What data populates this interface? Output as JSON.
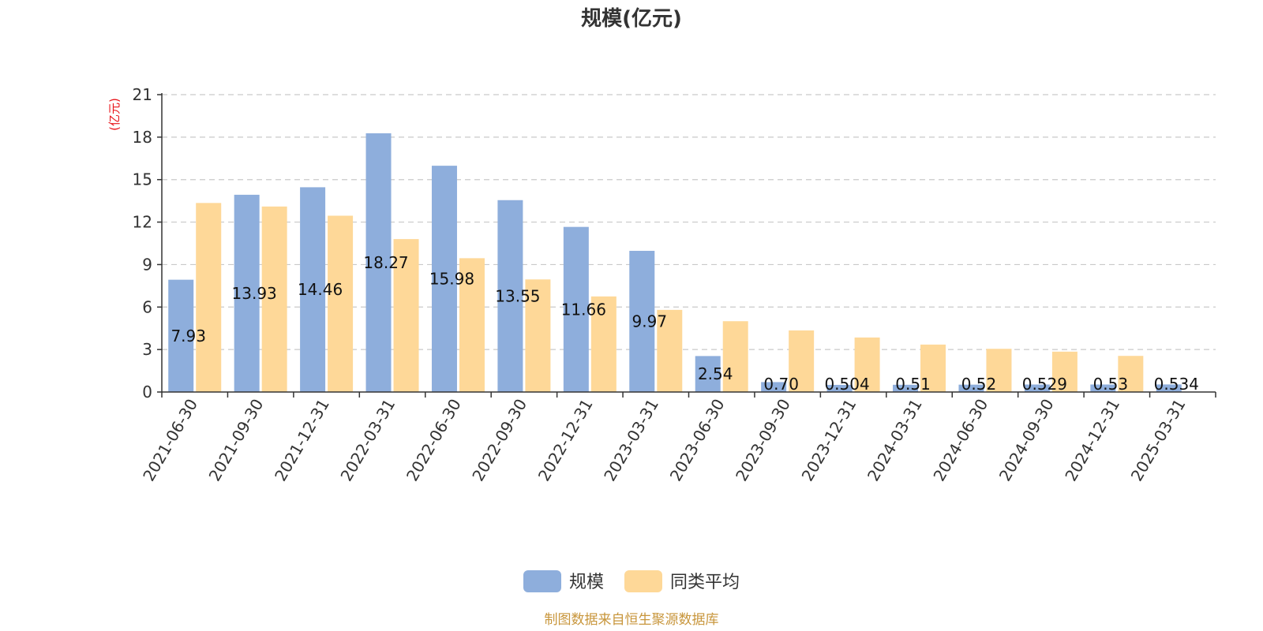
{
  "chart_data": {
    "type": "bar",
    "title": "规模(亿元)",
    "ylabel": "(亿元)",
    "ylim": [
      0,
      21
    ],
    "yticks": [
      0,
      3,
      6,
      9,
      12,
      15,
      18,
      21
    ],
    "grid": true,
    "legend_position": "bottom-center",
    "categories": [
      "2021-06-30",
      "2021-09-30",
      "2021-12-31",
      "2022-03-31",
      "2022-06-30",
      "2022-09-30",
      "2022-12-31",
      "2023-03-31",
      "2023-06-30",
      "2023-09-30",
      "2023-12-31",
      "2024-03-31",
      "2024-06-30",
      "2024-09-30",
      "2024-12-31",
      "2025-03-31"
    ],
    "series": [
      {
        "name": "规模",
        "color": "#8eaedc",
        "values": [
          7.93,
          13.93,
          14.46,
          18.27,
          15.98,
          13.55,
          11.66,
          9.97,
          2.54,
          0.7,
          0.504,
          0.51,
          0.52,
          0.529,
          0.53,
          0.534
        ],
        "value_labels": [
          "7.93",
          "13.93",
          "14.46",
          "18.27",
          "15.98",
          "13.55",
          "11.66",
          "9.97",
          "2.54",
          "0.70",
          "0.504",
          "0.51",
          "0.52",
          "0.529",
          "0.53",
          "0.534"
        ]
      },
      {
        "name": "同类平均",
        "color": "#fed898",
        "values": [
          13.35,
          13.1,
          12.45,
          10.8,
          9.45,
          7.95,
          6.75,
          5.8,
          5.0,
          4.35,
          3.85,
          3.35,
          3.05,
          2.85,
          2.55,
          0
        ]
      }
    ]
  },
  "source_note": "制图数据来自恒生聚源数据库"
}
